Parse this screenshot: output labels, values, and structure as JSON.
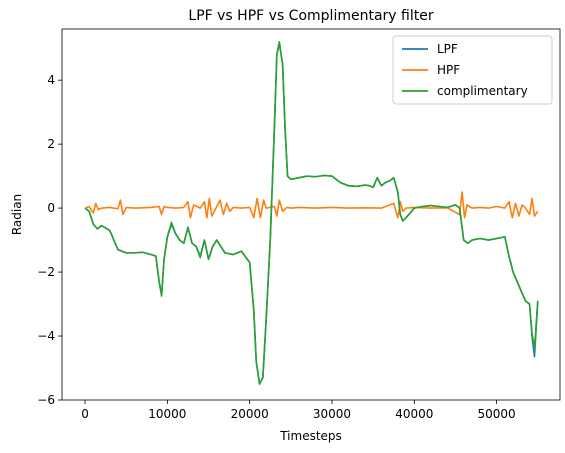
{
  "chart_data": {
    "type": "line",
    "title": "LPF vs HPF vs Complimentary filter",
    "xlabel": "Timesteps",
    "ylabel": "Radian",
    "xlim": [
      -2800,
      57700
    ],
    "ylim": [
      -6,
      5.6
    ],
    "xticks": [
      0,
      10000,
      20000,
      30000,
      40000,
      50000
    ],
    "xtick_labels": [
      "0",
      "10000",
      "20000",
      "30000",
      "40000",
      "50000"
    ],
    "yticks": [
      -6,
      -4,
      -2,
      0,
      2,
      4
    ],
    "ytick_labels": [
      "−6",
      "−4",
      "−2",
      "0",
      "2",
      "4"
    ],
    "grid": false,
    "legend": {
      "placement": "top-right"
    },
    "series": [
      {
        "name": "LPF",
        "color": "#1f77b4",
        "x": [
          0,
          500,
          1000,
          1500,
          2000,
          3000,
          4000,
          5000,
          6000,
          7000,
          8000,
          8600,
          9000,
          9300,
          9600,
          10000,
          10500,
          11000,
          11500,
          12000,
          12500,
          13000,
          13500,
          14000,
          14500,
          15000,
          15500,
          16000,
          17000,
          18000,
          19000,
          20000,
          20500,
          20800,
          21200,
          21600,
          22000,
          22500,
          23000,
          23300,
          23600,
          24000,
          24300,
          24600,
          25000,
          26000,
          27000,
          28000,
          29000,
          30000,
          31000,
          32000,
          33000,
          34000,
          34500,
          35000,
          35500,
          36000,
          36500,
          37000,
          37500,
          38000,
          38300,
          38600,
          39000,
          40000,
          41000,
          42000,
          43000,
          44000,
          45000,
          45500,
          46000,
          46500,
          47000,
          48000,
          49000,
          50000,
          51000,
          51500,
          52000,
          52500,
          53000,
          53500,
          54000,
          54300,
          54600,
          55000
        ],
        "values": [
          0,
          -0.1,
          -0.5,
          -0.65,
          -0.55,
          -0.7,
          -1.3,
          -1.4,
          -1.4,
          -1.38,
          -1.45,
          -1.5,
          -2.3,
          -2.7,
          -1.6,
          -0.9,
          -0.5,
          -0.8,
          -1.0,
          -1.1,
          -0.6,
          -1.1,
          -1.2,
          -1.5,
          -1.0,
          -1.6,
          -1.2,
          -1.0,
          -1.4,
          -1.45,
          -1.35,
          -1.7,
          -3.2,
          -4.8,
          -5.5,
          -5.3,
          -3.5,
          -1.0,
          2.5,
          4.8,
          5.15,
          4.5,
          2.5,
          1.0,
          0.9,
          0.95,
          1.0,
          0.98,
          1.02,
          1.0,
          0.8,
          0.7,
          0.68,
          0.72,
          0.7,
          0.65,
          0.95,
          0.7,
          0.8,
          0.85,
          0.95,
          0.5,
          -0.2,
          -0.4,
          -0.3,
          0.0,
          0.05,
          0.08,
          0.05,
          0.02,
          0.1,
          0.0,
          -1.0,
          -1.1,
          -1.0,
          -0.95,
          -1.0,
          -0.95,
          -0.9,
          -1.5,
          -2.0,
          -2.3,
          -2.6,
          -2.9,
          -3.0,
          -4.0,
          -4.65,
          -2.9
        ]
      },
      {
        "name": "HPF",
        "color": "#ff7f0e",
        "x": [
          0,
          500,
          1000,
          1300,
          1600,
          2000,
          3000,
          4000,
          4300,
          4600,
          5000,
          6000,
          7000,
          8000,
          9000,
          9300,
          9600,
          10000,
          11000,
          12000,
          12500,
          12800,
          13200,
          14000,
          14500,
          14800,
          15100,
          15400,
          16000,
          16400,
          16800,
          17200,
          17600,
          18000,
          19000,
          20000,
          20500,
          20900,
          21300,
          21700,
          22000,
          23000,
          23300,
          23600,
          24000,
          24500,
          25000,
          26000,
          28000,
          30000,
          32000,
          34000,
          36000,
          37500,
          38000,
          38300,
          38600,
          39000,
          40000,
          42000,
          44000,
          45500,
          45800,
          46100,
          46400,
          47000,
          48000,
          49000,
          50000,
          51000,
          51500,
          51900,
          52300,
          52700,
          53100,
          53500,
          54000,
          54300,
          54600,
          55000
        ],
        "values": [
          0,
          0.05,
          -0.15,
          0.15,
          -0.05,
          0.0,
          0.02,
          -0.02,
          0.25,
          -0.2,
          0.02,
          0.0,
          0.01,
          0.02,
          0.05,
          -0.2,
          0.05,
          0.02,
          0.0,
          0.02,
          0.2,
          -0.3,
          0.1,
          0.0,
          0.2,
          -0.3,
          0.3,
          -0.25,
          0.05,
          0.25,
          -0.2,
          0.15,
          -0.1,
          0.02,
          0.0,
          0.02,
          -0.3,
          0.3,
          -0.3,
          0.25,
          0.0,
          0.05,
          -0.25,
          0.25,
          -0.1,
          0.02,
          0.0,
          0.02,
          0.0,
          0.02,
          0.0,
          0.01,
          0.0,
          0.15,
          -0.3,
          0.2,
          -0.1,
          0.0,
          0.02,
          0.0,
          0.01,
          -0.2,
          0.5,
          -0.3,
          0.1,
          0.0,
          0.02,
          0.0,
          0.05,
          0.0,
          0.2,
          -0.3,
          0.15,
          -0.25,
          0.1,
          0.0,
          -0.2,
          0.3,
          -0.25,
          -0.1
        ]
      },
      {
        "name": "complimentary",
        "color": "#2ca02c",
        "x": [
          0,
          500,
          1000,
          1500,
          2000,
          3000,
          4000,
          5000,
          6000,
          7000,
          8000,
          8600,
          9000,
          9300,
          9600,
          10000,
          10500,
          11000,
          11500,
          12000,
          12500,
          13000,
          13500,
          14000,
          14500,
          15000,
          15500,
          16000,
          17000,
          18000,
          19000,
          20000,
          20500,
          20800,
          21200,
          21600,
          22000,
          22500,
          23000,
          23300,
          23600,
          24000,
          24300,
          24600,
          25000,
          26000,
          27000,
          28000,
          29000,
          30000,
          31000,
          32000,
          33000,
          34000,
          34500,
          35000,
          35500,
          36000,
          36500,
          37000,
          37500,
          38000,
          38300,
          38600,
          39000,
          40000,
          41000,
          42000,
          43000,
          44000,
          45000,
          45500,
          46000,
          46500,
          47000,
          48000,
          49000,
          50000,
          51000,
          51500,
          52000,
          52500,
          53000,
          53500,
          54000,
          54300,
          54600,
          55000
        ],
        "values": [
          0,
          -0.1,
          -0.5,
          -0.65,
          -0.55,
          -0.7,
          -1.3,
          -1.4,
          -1.4,
          -1.38,
          -1.45,
          -1.5,
          -2.3,
          -2.75,
          -1.6,
          -0.9,
          -0.45,
          -0.8,
          -1.0,
          -1.1,
          -0.6,
          -1.1,
          -1.2,
          -1.55,
          -1.0,
          -1.6,
          -1.2,
          -1.0,
          -1.4,
          -1.45,
          -1.35,
          -1.7,
          -3.2,
          -4.8,
          -5.5,
          -5.3,
          -3.5,
          -1.0,
          2.5,
          4.8,
          5.2,
          4.5,
          2.5,
          1.0,
          0.9,
          0.95,
          1.0,
          0.98,
          1.02,
          1.0,
          0.8,
          0.7,
          0.68,
          0.72,
          0.7,
          0.65,
          0.95,
          0.7,
          0.8,
          0.85,
          0.95,
          0.5,
          -0.2,
          -0.4,
          -0.3,
          0.0,
          0.05,
          0.08,
          0.05,
          0.02,
          0.1,
          0.0,
          -1.0,
          -1.1,
          -1.0,
          -0.95,
          -1.0,
          -0.95,
          -0.9,
          -1.5,
          -2.0,
          -2.3,
          -2.6,
          -2.9,
          -3.0,
          -3.9,
          -4.4,
          -2.9
        ]
      }
    ]
  }
}
